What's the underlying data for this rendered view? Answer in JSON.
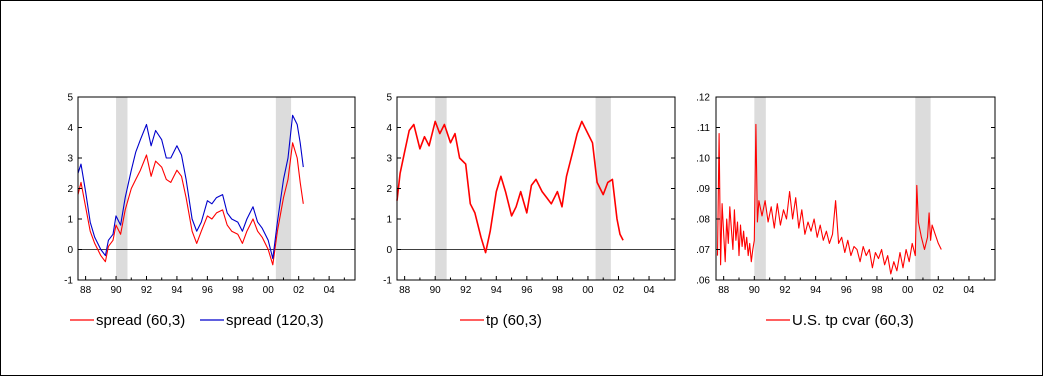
{
  "chart_data": [
    {
      "type": "line",
      "x_unit": "year",
      "xlim": [
        1987.5,
        2005.7
      ],
      "ylim": [
        -1,
        5
      ],
      "y_ticks": [
        -1,
        0,
        1,
        2,
        3,
        4,
        5
      ],
      "y_tick_labels": [
        "-1",
        "0",
        "1",
        "2",
        "3",
        "4",
        "5"
      ],
      "x_ticks": [
        1988,
        1990,
        1992,
        1994,
        1996,
        1998,
        2000,
        2002,
        2004
      ],
      "x_tick_labels": [
        "88",
        "90",
        "92",
        "94",
        "96",
        "98",
        "00",
        "02",
        "04"
      ],
      "zero_line": true,
      "shaded_ranges": [
        [
          1990.0,
          1990.75
        ],
        [
          2000.5,
          2001.5
        ]
      ],
      "legend_position": "bottom",
      "series": [
        {
          "name": "spread (60,3)",
          "color": "#ff0000",
          "x": [
            1987.5,
            1987.7,
            1988.0,
            1988.3,
            1988.6,
            1989.0,
            1989.3,
            1989.5,
            1989.8,
            1990.0,
            1990.3,
            1990.6,
            1991.0,
            1991.3,
            1991.6,
            1992.0,
            1992.3,
            1992.6,
            1993.0,
            1993.3,
            1993.6,
            1994.0,
            1994.3,
            1994.6,
            1995.0,
            1995.3,
            1995.6,
            1996.0,
            1996.3,
            1996.6,
            1997.0,
            1997.3,
            1997.6,
            1998.0,
            1998.3,
            1998.6,
            1999.0,
            1999.3,
            1999.6,
            2000.0,
            2000.3,
            2000.6,
            2001.0,
            2001.3,
            2001.6,
            2001.9,
            2002.1,
            2002.3
          ],
          "y": [
            1.8,
            2.2,
            1.4,
            0.6,
            0.2,
            -0.2,
            -0.4,
            0.1,
            0.3,
            0.8,
            0.5,
            1.3,
            2.0,
            2.3,
            2.6,
            3.1,
            2.4,
            2.9,
            2.7,
            2.3,
            2.2,
            2.6,
            2.4,
            1.7,
            0.6,
            0.2,
            0.6,
            1.1,
            1.0,
            1.2,
            1.3,
            0.8,
            0.6,
            0.5,
            0.2,
            0.6,
            1.0,
            0.6,
            0.4,
            0.0,
            -0.5,
            0.6,
            1.7,
            2.3,
            3.5,
            3.0,
            2.2,
            1.5
          ]
        },
        {
          "name": "spread (120,3)",
          "color": "#0000cc",
          "x": [
            1987.5,
            1987.7,
            1988.0,
            1988.3,
            1988.6,
            1989.0,
            1989.3,
            1989.5,
            1989.8,
            1990.0,
            1990.3,
            1990.6,
            1991.0,
            1991.3,
            1991.6,
            1992.0,
            1992.3,
            1992.6,
            1993.0,
            1993.3,
            1993.6,
            1994.0,
            1994.3,
            1994.6,
            1995.0,
            1995.3,
            1995.6,
            1996.0,
            1996.3,
            1996.6,
            1997.0,
            1997.3,
            1997.6,
            1998.0,
            1998.3,
            1998.6,
            1999.0,
            1999.3,
            1999.6,
            2000.0,
            2000.3,
            2000.6,
            2001.0,
            2001.3,
            2001.6,
            2001.9,
            2002.1,
            2002.3
          ],
          "y": [
            2.5,
            2.8,
            1.9,
            0.9,
            0.4,
            0.0,
            -0.2,
            0.3,
            0.5,
            1.1,
            0.8,
            1.7,
            2.6,
            3.2,
            3.6,
            4.1,
            3.4,
            3.9,
            3.6,
            3.0,
            3.0,
            3.4,
            3.1,
            2.3,
            1.0,
            0.6,
            0.9,
            1.6,
            1.5,
            1.7,
            1.8,
            1.2,
            1.0,
            0.9,
            0.6,
            1.0,
            1.4,
            0.9,
            0.7,
            0.3,
            -0.3,
            0.9,
            2.3,
            3.0,
            4.4,
            4.1,
            3.5,
            2.7
          ]
        }
      ]
    },
    {
      "type": "line",
      "x_unit": "year",
      "xlim": [
        1987.5,
        2005.7
      ],
      "ylim": [
        -1,
        5
      ],
      "y_ticks": [
        -1,
        0,
        1,
        2,
        3,
        4,
        5
      ],
      "y_tick_labels": [
        "-1",
        "0",
        "1",
        "2",
        "3",
        "4",
        "5"
      ],
      "x_ticks": [
        1988,
        1990,
        1992,
        1994,
        1996,
        1998,
        2000,
        2002,
        2004
      ],
      "x_tick_labels": [
        "88",
        "90",
        "92",
        "94",
        "96",
        "98",
        "00",
        "02",
        "04"
      ],
      "zero_line": true,
      "shaded_ranges": [
        [
          1990.0,
          1990.75
        ],
        [
          2000.5,
          2001.5
        ]
      ],
      "legend_position": "bottom",
      "series": [
        {
          "name": "tp (60,3)",
          "color": "#ff0000",
          "x": [
            1987.5,
            1987.7,
            1988.0,
            1988.3,
            1988.6,
            1989.0,
            1989.3,
            1989.6,
            1990.0,
            1990.3,
            1990.6,
            1991.0,
            1991.3,
            1991.6,
            1992.0,
            1992.3,
            1992.6,
            1993.0,
            1993.3,
            1993.6,
            1994.0,
            1994.3,
            1994.6,
            1995.0,
            1995.3,
            1995.6,
            1996.0,
            1996.3,
            1996.6,
            1997.0,
            1997.3,
            1997.6,
            1998.0,
            1998.3,
            1998.6,
            1999.0,
            1999.3,
            1999.6,
            2000.0,
            2000.3,
            2000.6,
            2001.0,
            2001.3,
            2001.6,
            2001.9,
            2002.1,
            2002.3
          ],
          "y": [
            1.6,
            2.5,
            3.2,
            3.9,
            4.1,
            3.3,
            3.7,
            3.4,
            4.2,
            3.8,
            4.1,
            3.5,
            3.8,
            3.0,
            2.8,
            1.5,
            1.2,
            0.4,
            -0.1,
            0.6,
            1.9,
            2.4,
            1.9,
            1.1,
            1.4,
            1.9,
            1.2,
            2.1,
            2.3,
            1.9,
            1.7,
            1.5,
            1.9,
            1.4,
            2.4,
            3.2,
            3.8,
            4.2,
            3.8,
            3.5,
            2.2,
            1.8,
            2.2,
            2.3,
            1.0,
            0.5,
            0.3
          ]
        }
      ]
    },
    {
      "type": "line",
      "x_unit": "year",
      "xlim": [
        1987.5,
        2005.7
      ],
      "ylim": [
        0.06,
        0.12
      ],
      "y_ticks": [
        0.06,
        0.07,
        0.08,
        0.09,
        0.1,
        0.11,
        0.12
      ],
      "y_tick_labels": [
        ".06",
        ".07",
        ".08",
        ".09",
        ".10",
        ".11",
        ".12"
      ],
      "x_ticks": [
        1988,
        1990,
        1992,
        1994,
        1996,
        1998,
        2000,
        2002,
        2004
      ],
      "x_tick_labels": [
        "88",
        "90",
        "92",
        "94",
        "96",
        "98",
        "00",
        "02",
        "04"
      ],
      "zero_line": false,
      "shaded_ranges": [
        [
          1990.0,
          1990.75
        ],
        [
          2000.5,
          2001.5
        ]
      ],
      "legend_position": "bottom",
      "series": [
        {
          "name": "U.S. tp cvar (60,3)",
          "color": "#ff0000",
          "x": [
            1987.6,
            1987.7,
            1987.8,
            1987.9,
            1988.0,
            1988.1,
            1988.2,
            1988.3,
            1988.4,
            1988.5,
            1988.6,
            1988.7,
            1988.8,
            1988.9,
            1989.0,
            1989.1,
            1989.2,
            1989.3,
            1989.4,
            1989.5,
            1989.6,
            1989.7,
            1989.8,
            1989.9,
            1990.0,
            1990.1,
            1990.2,
            1990.3,
            1990.5,
            1990.7,
            1990.9,
            1991.1,
            1991.3,
            1991.5,
            1991.7,
            1991.9,
            1992.1,
            1992.3,
            1992.5,
            1992.7,
            1992.9,
            1993.1,
            1993.3,
            1993.5,
            1993.7,
            1993.9,
            1994.1,
            1994.3,
            1994.5,
            1994.7,
            1994.9,
            1995.1,
            1995.3,
            1995.5,
            1995.7,
            1995.9,
            1996.1,
            1996.3,
            1996.5,
            1996.7,
            1996.9,
            1997.1,
            1997.3,
            1997.5,
            1997.7,
            1997.9,
            1998.1,
            1998.3,
            1998.5,
            1998.7,
            1998.9,
            1999.1,
            1999.3,
            1999.5,
            1999.7,
            1999.9,
            2000.1,
            2000.3,
            2000.5,
            2000.6,
            2000.7,
            2000.9,
            2001.1,
            2001.3,
            2001.4,
            2001.5,
            2001.6,
            2001.8,
            2002.0,
            2002.2
          ],
          "y": [
            0.068,
            0.108,
            0.065,
            0.085,
            0.075,
            0.066,
            0.08,
            0.072,
            0.084,
            0.077,
            0.07,
            0.083,
            0.073,
            0.079,
            0.068,
            0.078,
            0.071,
            0.076,
            0.07,
            0.074,
            0.068,
            0.072,
            0.066,
            0.07,
            0.073,
            0.111,
            0.079,
            0.086,
            0.081,
            0.086,
            0.079,
            0.084,
            0.077,
            0.085,
            0.078,
            0.083,
            0.08,
            0.089,
            0.08,
            0.087,
            0.077,
            0.083,
            0.075,
            0.079,
            0.076,
            0.08,
            0.074,
            0.078,
            0.073,
            0.076,
            0.072,
            0.075,
            0.086,
            0.072,
            0.074,
            0.069,
            0.073,
            0.068,
            0.071,
            0.07,
            0.066,
            0.071,
            0.068,
            0.07,
            0.064,
            0.069,
            0.067,
            0.07,
            0.065,
            0.068,
            0.062,
            0.066,
            0.063,
            0.069,
            0.064,
            0.07,
            0.066,
            0.072,
            0.068,
            0.091,
            0.079,
            0.074,
            0.07,
            0.074,
            0.082,
            0.073,
            0.078,
            0.075,
            0.072,
            0.07
          ]
        }
      ]
    }
  ]
}
